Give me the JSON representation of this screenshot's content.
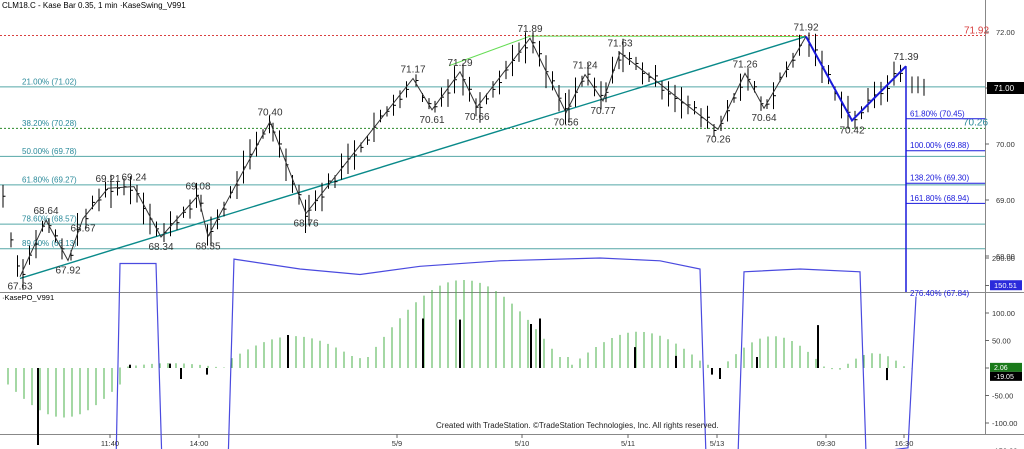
{
  "header": {
    "title": "CLM18.C - Kase Bar 0.35, 1 min ·KaseSwing_V991",
    "indicator_title": "·KasePO_V991",
    "credit": "Created with TradeStation. ©TradeStation Technologies, Inc. All rights reserved."
  },
  "colors": {
    "price_bar": "#000000",
    "swing_line": "#333333",
    "trend_line": "#0a8a8a",
    "fib_line": "#2a9090",
    "fib_label": "#2a8a9a",
    "proj_line": "#1a1adb",
    "proj_label": "#1a1adb",
    "red_dotted": "#d94040",
    "green_line": "#66dd55",
    "green_dotted": "#2a8a2a",
    "osc_line": "#4a4adf",
    "hist_green": "#4ab04a",
    "hist_black": "#000000",
    "grid": "#cccccc"
  },
  "chart_data": {
    "type": "line",
    "main": {
      "y_axis_ticks": [
        "72.00",
        "71.00",
        "70.00",
        "69.00",
        "68.00"
      ],
      "ylim": [
        67.35,
        72.3
      ],
      "last_price": "71.00",
      "resistance_label": "71.92",
      "support_label": "70.26",
      "fib_levels": [
        {
          "label": "21.00% (71.02)",
          "value": 71.02
        },
        {
          "label": "38.20% (70.28)",
          "value": 70.28
        },
        {
          "label": "50.00% (69.78)",
          "value": 69.78
        },
        {
          "label": "61.80% (69.27)",
          "value": 69.27
        },
        {
          "label": "78.60% (68.57)",
          "value": 68.57
        },
        {
          "label": "89.00% (68.13)",
          "value": 68.13
        }
      ],
      "projection_levels": [
        {
          "label": "61.80% (70.45)",
          "value": 70.45
        },
        {
          "label": "100.00% (69.88)",
          "value": 69.88
        },
        {
          "label": "138.20% (69.30)",
          "value": 69.3
        },
        {
          "label": "161.80% (68.94)",
          "value": 68.94
        },
        {
          "label": "276.40% (67.84)",
          "value": 67.84
        }
      ],
      "swing_labels": [
        "67.63",
        "68.64",
        "67.92",
        "68.67",
        "69.21",
        "69.24",
        "68.34",
        "69.08",
        "68.35",
        "70.40",
        "68.76",
        "71.17",
        "70.61",
        "71.29",
        "70.66",
        "71.89",
        "70.56",
        "71.24",
        "70.77",
        "71.63",
        "70.26",
        "71.26",
        "70.64",
        "71.92",
        "70.42",
        "71.39"
      ]
    },
    "oscillator": {
      "name": "KasePO_V991",
      "y_axis_ticks": [
        "200.00",
        "150.00",
        "100.00",
        "50.00",
        "0.00",
        "-50.00",
        "-100.00",
        "-150.00"
      ],
      "ylim": [
        -180,
        230
      ],
      "value_1": "150.51",
      "value_2": "2.06",
      "value_3": "-19.05"
    },
    "x_axis": {
      "ticks": [
        "11:40",
        "14:00",
        "5/9",
        "5/10",
        "5/11",
        "5/13",
        "09:30",
        "16:30"
      ]
    }
  }
}
